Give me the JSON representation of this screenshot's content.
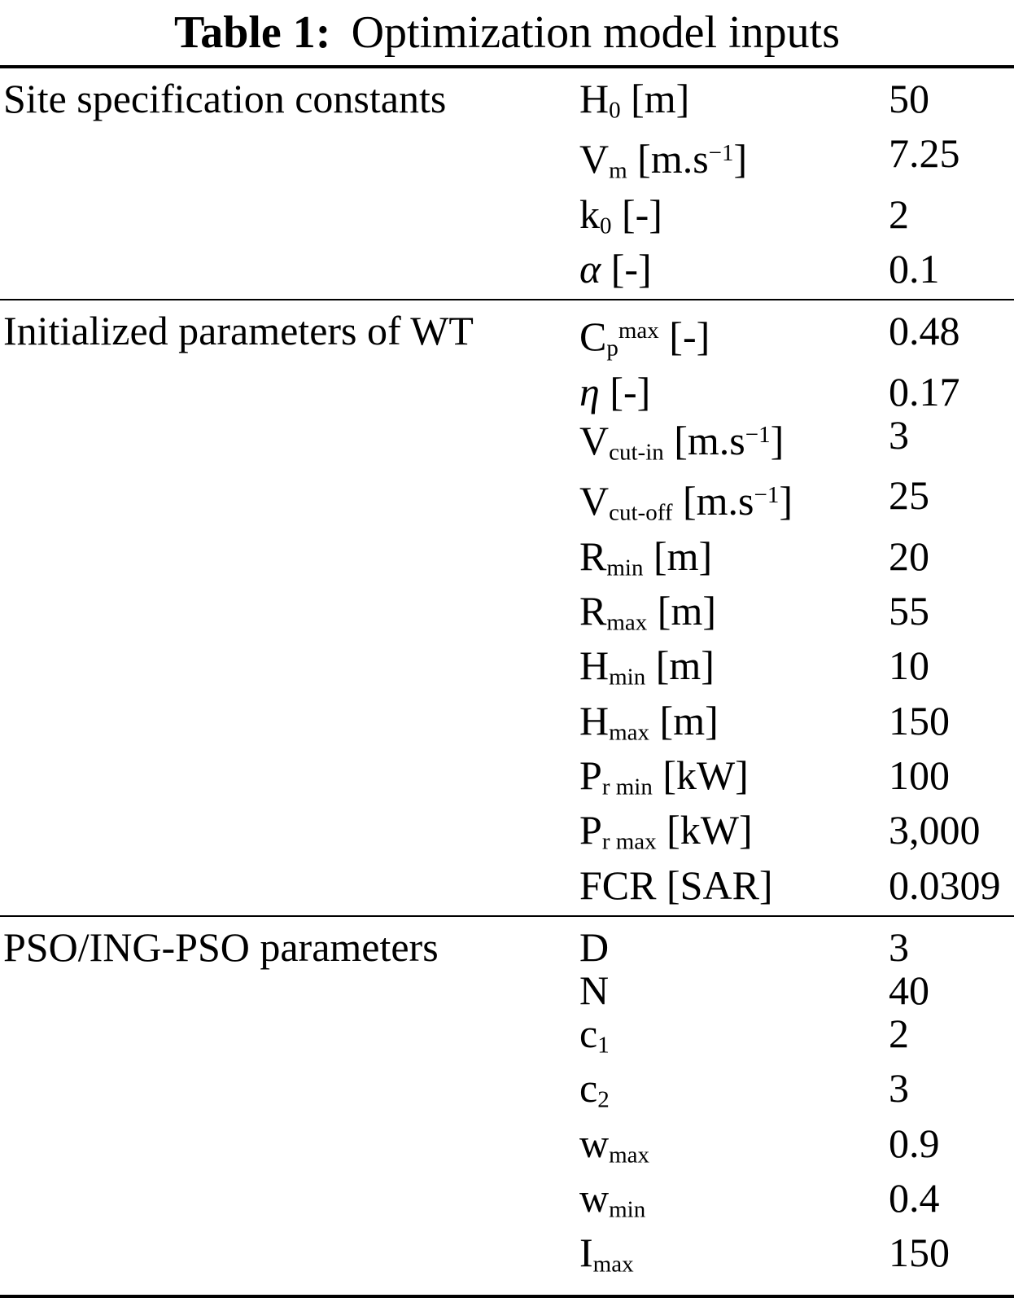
{
  "caption": {
    "label": "Table 1:",
    "text": "Optimization model inputs"
  },
  "colors": {
    "text": "#000000",
    "background": "#ffffff",
    "rule": "#000000"
  },
  "table": {
    "sections": [
      {
        "group": "Site specification constants",
        "rows": [
          {
            "param": [
              {
                "t": "H"
              },
              {
                "t": "0",
                "s": "sub"
              },
              {
                "t": " [m]"
              }
            ],
            "value": "50"
          },
          {
            "param": [
              {
                "t": "V"
              },
              {
                "t": "m",
                "s": "sub"
              },
              {
                "t": " [m.s"
              },
              {
                "t": "−1",
                "s": "sup"
              },
              {
                "t": "]"
              }
            ],
            "value": "7.25"
          },
          {
            "param": [
              {
                "t": "k"
              },
              {
                "t": "0",
                "s": "sub"
              },
              {
                "t": " [-]"
              }
            ],
            "value": "2"
          },
          {
            "param": [
              {
                "t": "α",
                "s": "i"
              },
              {
                "t": " [-]"
              }
            ],
            "value": "0.1"
          }
        ]
      },
      {
        "group": "Initialized parameters of WT",
        "rows": [
          {
            "param": [
              {
                "t": "C"
              },
              {
                "t": "p",
                "s": "sub"
              },
              {
                "t": "max",
                "s": "sup"
              },
              {
                "t": " [-]"
              }
            ],
            "value": "0.48"
          },
          {
            "param": [
              {
                "t": "η",
                "s": "i"
              },
              {
                "t": " [-]"
              }
            ],
            "value": "0.17"
          },
          {
            "param": [
              {
                "t": "V"
              },
              {
                "t": "cut-in",
                "s": "sub"
              },
              {
                "t": " [m.s"
              },
              {
                "t": "−1",
                "s": "sup"
              },
              {
                "t": "]"
              }
            ],
            "value": "3"
          },
          {
            "param": [
              {
                "t": "V"
              },
              {
                "t": "cut-off",
                "s": "sub"
              },
              {
                "t": " [m.s"
              },
              {
                "t": "−1",
                "s": "sup"
              },
              {
                "t": "]"
              }
            ],
            "value": "25"
          },
          {
            "param": [
              {
                "t": "R"
              },
              {
                "t": "min",
                "s": "sub"
              },
              {
                "t": " [m]"
              }
            ],
            "value": "20"
          },
          {
            "param": [
              {
                "t": "R"
              },
              {
                "t": "max",
                "s": "sub"
              },
              {
                "t": " [m]"
              }
            ],
            "value": "55"
          },
          {
            "param": [
              {
                "t": "H"
              },
              {
                "t": "min",
                "s": "sub"
              },
              {
                "t": " [m]"
              }
            ],
            "value": "10"
          },
          {
            "param": [
              {
                "t": "H"
              },
              {
                "t": "max",
                "s": "sub"
              },
              {
                "t": " [m]"
              }
            ],
            "value": "150"
          },
          {
            "param": [
              {
                "t": "P"
              },
              {
                "t": "r min",
                "s": "sub"
              },
              {
                "t": " [kW]"
              }
            ],
            "value": "100"
          },
          {
            "param": [
              {
                "t": "P"
              },
              {
                "t": "r max",
                "s": "sub"
              },
              {
                "t": " [kW]"
              }
            ],
            "value": "3,000"
          },
          {
            "param": [
              {
                "t": "FCR [SAR]"
              }
            ],
            "value": "0.0309"
          }
        ]
      },
      {
        "group": "PSO/ING-PSO parameters",
        "rows": [
          {
            "param": [
              {
                "t": "D"
              }
            ],
            "value": "3"
          },
          {
            "param": [
              {
                "t": "N"
              }
            ],
            "value": "40"
          },
          {
            "param": [
              {
                "t": "c"
              },
              {
                "t": "1",
                "s": "sub"
              }
            ],
            "value": "2"
          },
          {
            "param": [
              {
                "t": "c"
              },
              {
                "t": "2",
                "s": "sub"
              }
            ],
            "value": "3"
          },
          {
            "param": [
              {
                "t": "w"
              },
              {
                "t": "max",
                "s": "sub"
              }
            ],
            "value": "0.9"
          },
          {
            "param": [
              {
                "t": "w"
              },
              {
                "t": "min",
                "s": "sub"
              }
            ],
            "value": "0.4"
          },
          {
            "param": [
              {
                "t": "I"
              },
              {
                "t": "max",
                "s": "sub"
              }
            ],
            "value": "150"
          }
        ]
      }
    ]
  }
}
